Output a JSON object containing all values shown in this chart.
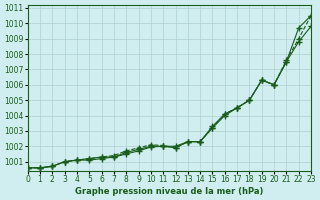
{
  "title": "Graphe pression niveau de la mer (hPa)",
  "bg_color": "#d0eef0",
  "line_color": "#1a5c1a",
  "grid_color": "#b0d0d0",
  "xlim": [
    0,
    23
  ],
  "ylim": [
    1000.4,
    1011.2
  ],
  "yticks": [
    1001,
    1002,
    1003,
    1004,
    1005,
    1006,
    1007,
    1008,
    1009,
    1010,
    1011
  ],
  "xticks": [
    0,
    1,
    2,
    3,
    4,
    5,
    6,
    7,
    8,
    9,
    10,
    11,
    12,
    13,
    14,
    15,
    16,
    17,
    18,
    19,
    20,
    21,
    22,
    23
  ],
  "x": [
    0,
    1,
    2,
    3,
    4,
    5,
    6,
    7,
    8,
    9,
    10,
    11,
    12,
    13,
    14,
    15,
    16,
    17,
    18,
    19,
    20,
    21,
    22,
    23
  ],
  "line1": [
    1000.6,
    1000.6,
    1000.7,
    1001.0,
    1001.1,
    1001.1,
    1001.2,
    1001.3,
    1001.5,
    1001.7,
    1001.95,
    1002.0,
    1001.9,
    1002.3,
    1002.3,
    1003.3,
    1004.1,
    1004.5,
    1005.0,
    1006.3,
    1006.0,
    1007.5,
    1009.7,
    1010.5
  ],
  "line2": [
    1000.6,
    1000.6,
    1000.7,
    1001.0,
    1001.1,
    1001.2,
    1001.3,
    1001.3,
    1001.6,
    1001.8,
    1002.0,
    1002.0,
    1002.0,
    1002.3,
    1002.3,
    1003.2,
    1004.0,
    1004.5,
    1005.0,
    1006.3,
    1006.0,
    1007.5,
    1008.8,
    1009.8
  ],
  "line3": [
    1000.6,
    1000.6,
    1000.7,
    1001.0,
    1001.1,
    1001.2,
    1001.3,
    1001.4,
    1001.7,
    1001.9,
    1002.1,
    1002.05,
    1001.9,
    1002.3,
    1002.3,
    1003.2,
    1004.1,
    1004.5,
    1005.0,
    1006.3,
    1006.0,
    1007.6,
    1009.0,
    1010.5
  ]
}
